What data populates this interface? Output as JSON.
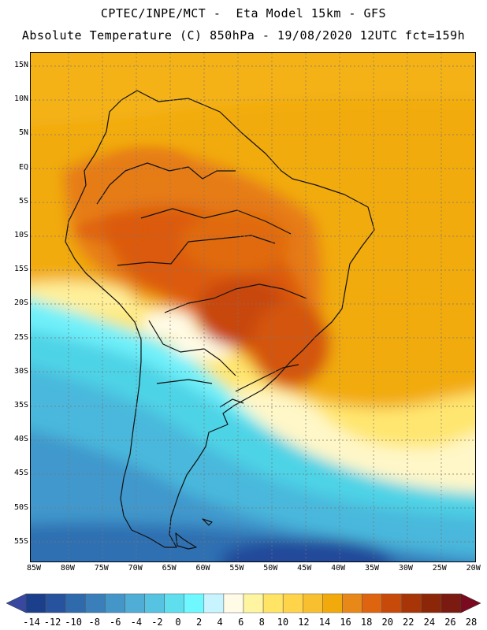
{
  "header": {
    "line1": "CPTEC/INPE/MCT -  Eta Model 15km - GFS",
    "line2": "Absolute Temperature (C) 850hPa - 19/08/2020 12UTC fct=159h"
  },
  "latitude_labels": [
    "15N",
    "10N",
    "5N",
    "EQ",
    "5S",
    "10S",
    "15S",
    "20S",
    "25S",
    "30S",
    "35S",
    "40S",
    "45S",
    "50S",
    "55S"
  ],
  "longitude_labels": [
    "85W",
    "80W",
    "75W",
    "70W",
    "65W",
    "60W",
    "55W",
    "50W",
    "45W",
    "40W",
    "35W",
    "30W",
    "25W",
    "20W"
  ],
  "colorbar": {
    "labels": [
      "-14",
      "-12",
      "-10",
      "-8",
      "-6",
      "-4",
      "-2",
      "0",
      "2",
      "4",
      "6",
      "8",
      "10",
      "12",
      "14",
      "16",
      "18",
      "20",
      "22",
      "24",
      "26",
      "28"
    ],
    "colors": [
      "#1c3f8c",
      "#27529e",
      "#2e6aac",
      "#3a7fba",
      "#4496c8",
      "#4fadd6",
      "#56c3e2",
      "#5fdeee",
      "#6ff8ff",
      "#c8f4ff",
      "#fffbe6",
      "#fff5a0",
      "#ffe466",
      "#ffd44a",
      "#f8c030",
      "#f2a90c",
      "#e88818",
      "#de6410",
      "#c84a0a",
      "#a83508",
      "#8c2608",
      "#7a1a10"
    ],
    "under_color": "#3848a0",
    "over_color": "#7a0a20"
  }
}
